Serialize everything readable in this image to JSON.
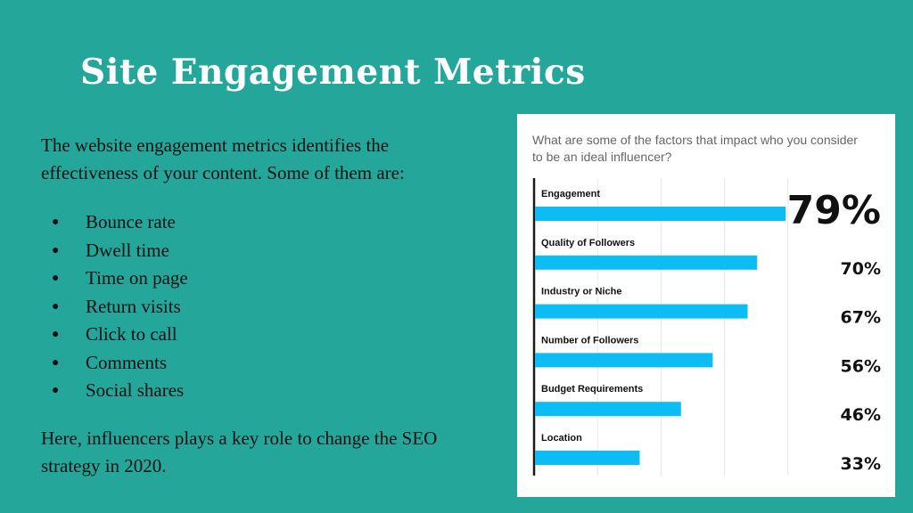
{
  "slide": {
    "title": "Site Engagement Metrics",
    "intro": "The website engagement metrics identifies the effectiveness of your content. Some of them are:",
    "bullet_symbol": "●",
    "bullets": [
      "Bounce rate",
      "Dwell time",
      "Time on page",
      "Return visits",
      "Click to call",
      "Comments",
      "Social shares"
    ],
    "outro": "Here, influencers plays a key role to change the SEO strategy in 2020."
  },
  "colors": {
    "background": "#25a69b",
    "bar": "#0bbcf5",
    "text_dark": "#111111",
    "question_text": "#666666"
  },
  "chart_data": {
    "type": "bar",
    "orientation": "horizontal",
    "title": "What are some of the factors that impact who you consider to be an ideal influencer?",
    "categories": [
      "Engagement",
      "Quality of Followers",
      "Industry or Niche",
      "Number of Followers",
      "Budget Requirements",
      "Location"
    ],
    "values": [
      79,
      70,
      67,
      56,
      46,
      33
    ],
    "value_labels": [
      "79%",
      "70%",
      "67%",
      "56%",
      "46%",
      "33%"
    ],
    "xlim": [
      0,
      100
    ],
    "grid": true,
    "legend": "none"
  }
}
